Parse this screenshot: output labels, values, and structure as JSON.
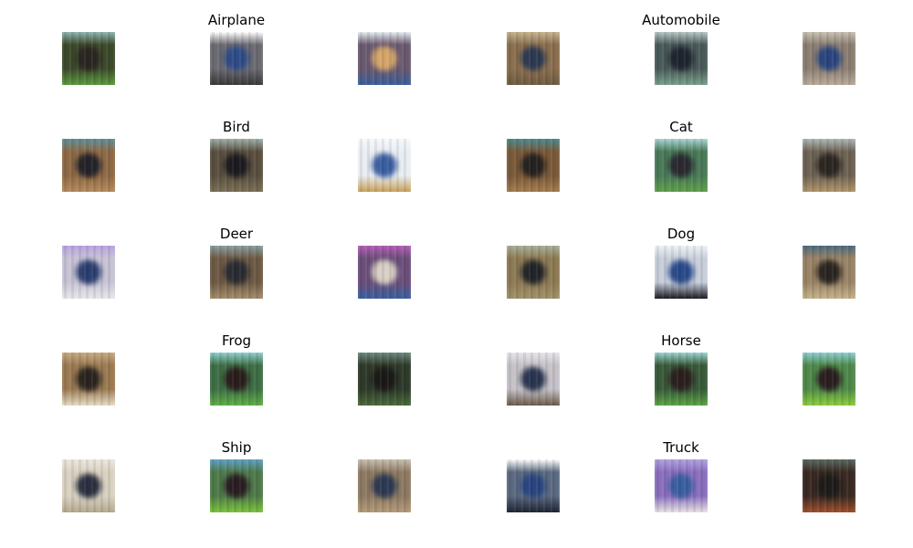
{
  "figure": {
    "classes": [
      {
        "name": "Airplane",
        "thumbs": [
          {
            "bg": "#3d4a2c",
            "top": "#8fb7b0",
            "blob": "#2b2622",
            "accent": "#5b9a3c"
          },
          {
            "bg": "#6b6b72",
            "top": "#ffffff",
            "blob": "#2f4c88",
            "accent": "#3a3a3a"
          },
          {
            "bg": "#6a5a70",
            "top": "#e8eef2",
            "blob": "#d6a66a",
            "accent": "#3b5f9a"
          }
        ]
      },
      {
        "name": "Automobile",
        "thumbs": [
          {
            "bg": "#8b6f4e",
            "top": "#c7b48f",
            "blob": "#2d3a52",
            "accent": "#6e5b43"
          },
          {
            "bg": "#4a5a5a",
            "top": "#b8c7c5",
            "blob": "#1f2530",
            "accent": "#7aa08a"
          },
          {
            "bg": "#8c7f72",
            "top": "#c9c1b4",
            "blob": "#2a4680",
            "accent": "#b9aa9a"
          }
        ]
      },
      {
        "name": "Bird",
        "thumbs": [
          {
            "bg": "#8f6a46",
            "top": "#5f8f9a",
            "blob": "#23232a",
            "accent": "#b5895c"
          },
          {
            "bg": "#5a5040",
            "top": "#9fb0a8",
            "blob": "#1c1c20",
            "accent": "#7a6f55"
          },
          {
            "bg": "#e9eef3",
            "top": "#f7f9fb",
            "blob": "#3b5fa1",
            "accent": "#c9a05a"
          }
        ]
      },
      {
        "name": "Cat",
        "thumbs": [
          {
            "bg": "#7b5a3a",
            "top": "#4c8a8f",
            "blob": "#252220",
            "accent": "#a37c4e"
          },
          {
            "bg": "#4a7a58",
            "top": "#a8d6d8",
            "blob": "#2a2a30",
            "accent": "#5fa04a"
          },
          {
            "bg": "#6e6354",
            "top": "#aeb8b5",
            "blob": "#2b2621",
            "accent": "#b0956a"
          }
        ]
      },
      {
        "name": "Deer",
        "thumbs": [
          {
            "bg": "#c8c4d6",
            "top": "#b6a4e0",
            "blob": "#2b3f70",
            "accent": "#e8e6ea"
          },
          {
            "bg": "#6e5a45",
            "top": "#8aa0a0",
            "blob": "#2a2b33",
            "accent": "#a58c6c"
          },
          {
            "bg": "#6b4f7a",
            "top": "#b45fb5",
            "blob": "#d9d0c6",
            "accent": "#3a5fa0"
          }
        ]
      },
      {
        "name": "Dog",
        "thumbs": [
          {
            "bg": "#8e7a54",
            "top": "#a8b09a",
            "blob": "#23252a",
            "accent": "#a0916a"
          },
          {
            "bg": "#c7cfdc",
            "top": "#eef2f6",
            "blob": "#2a4a8a",
            "accent": "#1a1a22"
          },
          {
            "bg": "#9a8466",
            "top": "#4d6a80",
            "blob": "#2a2520",
            "accent": "#c5b28a"
          }
        ]
      },
      {
        "name": "Frog",
        "thumbs": [
          {
            "bg": "#9b7a52",
            "top": "#c6ab84",
            "blob": "#2a2520",
            "accent": "#e6dcc5"
          },
          {
            "bg": "#3f6f45",
            "top": "#8fd1d0",
            "blob": "#2a1e1c",
            "accent": "#5fae47"
          },
          {
            "bg": "#2f3a2a",
            "top": "#6f8a80",
            "blob": "#1b1a18",
            "accent": "#4a6a3a"
          }
        ]
      },
      {
        "name": "Horse",
        "thumbs": [
          {
            "bg": "#c6c2c8",
            "top": "#e6e4ea",
            "blob": "#2a3550",
            "accent": "#6a5a4a"
          },
          {
            "bg": "#3a5a3a",
            "top": "#9ad6d2",
            "blob": "#2b201e",
            "accent": "#5aa444"
          },
          {
            "bg": "#4f8a4a",
            "top": "#8fcfd6",
            "blob": "#2b1e20",
            "accent": "#8acd3c"
          }
        ]
      },
      {
        "name": "Ship",
        "thumbs": [
          {
            "bg": "#d9d2c2",
            "top": "#ece7dc",
            "blob": "#2a3040",
            "accent": "#b5a88e"
          },
          {
            "bg": "#4f7a4a",
            "top": "#5fa0c8",
            "blob": "#2a1e22",
            "accent": "#7ac23a"
          },
          {
            "bg": "#8e7a63",
            "top": "#c8c0b0",
            "blob": "#2e3a52",
            "accent": "#b39a78"
          }
        ]
      },
      {
        "name": "Truck",
        "thumbs": [
          {
            "bg": "#5a6a80",
            "top": "#ffffff",
            "blob": "#2a4680",
            "accent": "#1e2535"
          },
          {
            "bg": "#8b6fbf",
            "top": "#b0a2e0",
            "blob": "#3a5fa0",
            "accent": "#e8e2e2"
          },
          {
            "bg": "#3a2a22",
            "top": "#5a6a62",
            "blob": "#1e1c1a",
            "accent": "#a0502e"
          }
        ]
      }
    ]
  }
}
